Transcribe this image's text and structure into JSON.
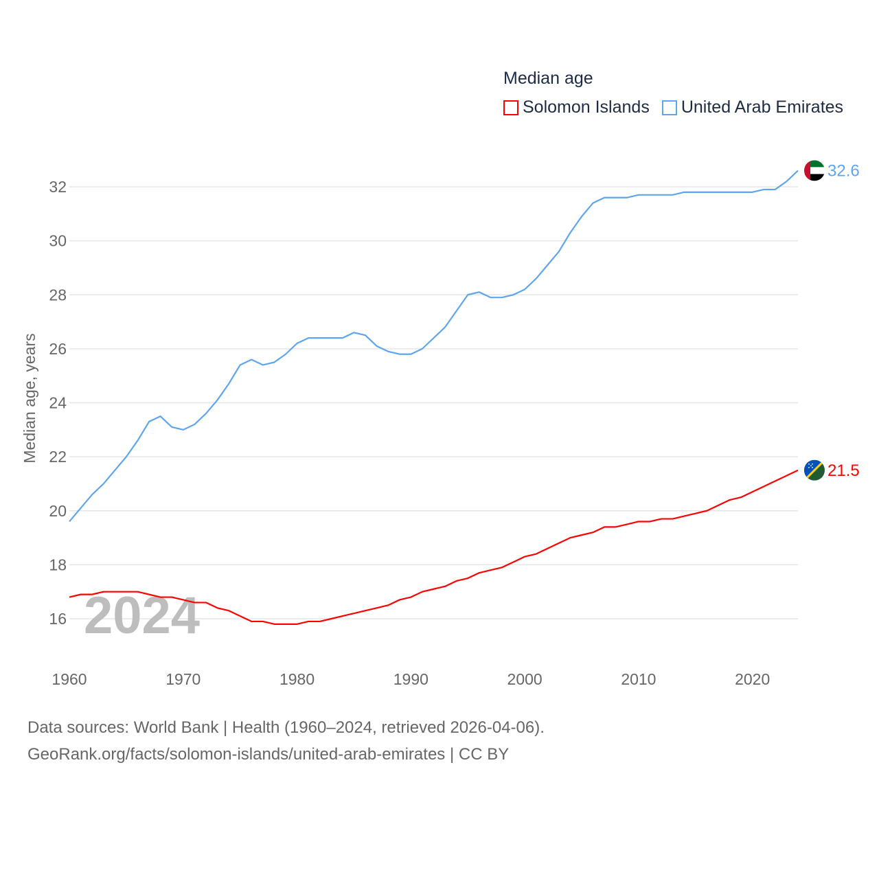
{
  "chart_data": {
    "type": "line",
    "title": "Median age",
    "xlabel": "",
    "ylabel": "Median age, years",
    "xlim": [
      1960,
      2024
    ],
    "ylim": [
      14.8,
      33
    ],
    "grid": true,
    "legend_position": "top-right",
    "x_ticks": [
      1960,
      1970,
      1980,
      1990,
      2000,
      2010,
      2020
    ],
    "y_ticks": [
      16,
      18,
      20,
      22,
      24,
      26,
      28,
      30,
      32
    ],
    "year_watermark": "2024",
    "series": [
      {
        "name": "Solomon Islands",
        "color": "#ff0000",
        "end_label": "21.5",
        "flag": "solomon-islands",
        "values": [
          16.8,
          16.9,
          16.9,
          17.0,
          17.0,
          17.0,
          17.0,
          16.9,
          16.8,
          16.8,
          16.7,
          16.6,
          16.6,
          16.4,
          16.3,
          16.1,
          15.9,
          15.9,
          15.8,
          15.8,
          15.8,
          15.9,
          15.9,
          16.0,
          16.1,
          16.2,
          16.3,
          16.4,
          16.5,
          16.7,
          16.8,
          17.0,
          17.1,
          17.2,
          17.4,
          17.5,
          17.7,
          17.8,
          17.9,
          18.1,
          18.3,
          18.4,
          18.6,
          18.8,
          19.0,
          19.1,
          19.2,
          19.4,
          19.4,
          19.5,
          19.6,
          19.6,
          19.7,
          19.7,
          19.8,
          19.9,
          20.0,
          20.2,
          20.4,
          20.5,
          20.7,
          20.9,
          21.1,
          21.3,
          21.5
        ]
      },
      {
        "name": "United Arab Emirates",
        "color": "#5ea5ee",
        "end_label": "32.6",
        "flag": "united-arab-emirates",
        "values": [
          19.6,
          20.1,
          20.6,
          21.0,
          21.5,
          22.0,
          22.6,
          23.3,
          23.5,
          23.1,
          23.0,
          23.2,
          23.6,
          24.1,
          24.7,
          25.4,
          25.6,
          25.4,
          25.5,
          25.8,
          26.2,
          26.4,
          26.4,
          26.4,
          26.4,
          26.6,
          26.5,
          26.1,
          25.9,
          25.8,
          25.8,
          26.0,
          26.4,
          26.8,
          27.4,
          28.0,
          28.1,
          27.9,
          27.9,
          28.0,
          28.2,
          28.6,
          29.1,
          29.6,
          30.3,
          30.9,
          31.4,
          31.6,
          31.6,
          31.6,
          31.7,
          31.7,
          31.7,
          31.7,
          31.8,
          31.8,
          31.8,
          31.8,
          31.8,
          31.8,
          31.8,
          31.9,
          31.9,
          32.2,
          32.6
        ]
      }
    ]
  },
  "footer": {
    "line1": "Data sources: World Bank | Health (1960–2024, retrieved 2026-04-06).",
    "line2": "GeoRank.org/facts/solomon-islands/united-arab-emirates | CC BY"
  }
}
